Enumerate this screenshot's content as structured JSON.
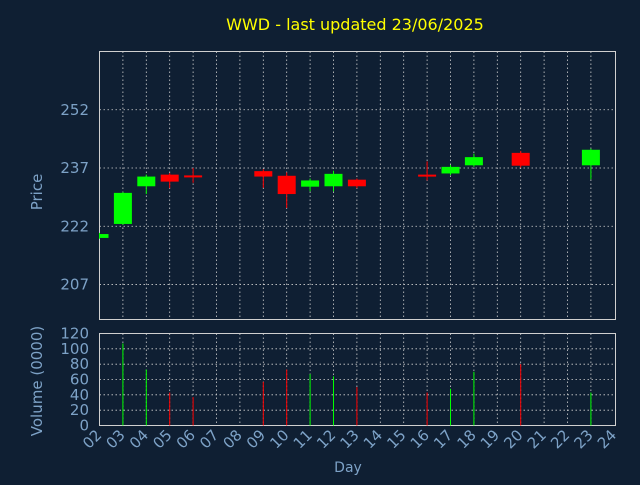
{
  "chart_data": {
    "type": "candlestick",
    "title": "WWD - last updated 23/06/2025",
    "xlabel": "Day",
    "price_panel": {
      "ylabel": "Price",
      "yticks": [
        207,
        222,
        237,
        252
      ],
      "ylim": [
        198,
        267
      ],
      "grid": true
    },
    "volume_panel": {
      "ylabel": "Volume (0000)",
      "yticks": [
        0,
        20,
        40,
        60,
        80,
        100,
        120
      ],
      "ylim": [
        0,
        120
      ],
      "grid": true
    },
    "x_ticks": [
      "02",
      "03",
      "04",
      "05",
      "06",
      "07",
      "08",
      "09",
      "10",
      "11",
      "12",
      "13",
      "14",
      "15",
      "16",
      "17",
      "18",
      "19",
      "20",
      "21",
      "22",
      "23",
      "24"
    ],
    "candles": [
      {
        "day": "02",
        "open": 219.0,
        "close": 220.0,
        "high": 220.3,
        "low": 218.8,
        "volume": 0
      },
      {
        "day": "03",
        "open": 222.6,
        "close": 230.6,
        "high": 230.8,
        "low": 222.4,
        "volume": 107
      },
      {
        "day": "04",
        "open": 232.3,
        "close": 234.8,
        "high": 235.3,
        "low": 230.3,
        "volume": 73
      },
      {
        "day": "05",
        "open": 235.3,
        "close": 233.5,
        "high": 235.7,
        "low": 231.8,
        "volume": 43
      },
      {
        "day": "06",
        "open": 235.1,
        "close": 234.9,
        "high": 237.0,
        "low": 233.2,
        "volume": 37
      },
      {
        "day": "09",
        "open": 236.2,
        "close": 234.8,
        "high": 236.7,
        "low": 231.9,
        "volume": 57
      },
      {
        "day": "10",
        "open": 235.0,
        "close": 230.3,
        "high": 235.9,
        "low": 226.7,
        "volume": 73
      },
      {
        "day": "11",
        "open": 232.2,
        "close": 233.8,
        "high": 234.3,
        "low": 231.0,
        "volume": 67
      },
      {
        "day": "12",
        "open": 232.3,
        "close": 235.5,
        "high": 236.3,
        "low": 231.0,
        "volume": 64
      },
      {
        "day": "13",
        "open": 234.0,
        "close": 232.3,
        "high": 234.3,
        "low": 231.8,
        "volume": 50
      },
      {
        "day": "16",
        "open": 235.3,
        "close": 235.0,
        "high": 238.7,
        "low": 233.8,
        "volume": 43
      },
      {
        "day": "17",
        "open": 235.6,
        "close": 237.3,
        "high": 237.8,
        "low": 235.2,
        "volume": 48
      },
      {
        "day": "18",
        "open": 237.7,
        "close": 239.8,
        "high": 240.7,
        "low": 237.3,
        "volume": 70
      },
      {
        "day": "20",
        "open": 240.9,
        "close": 237.6,
        "high": 241.4,
        "low": 237.1,
        "volume": 80
      },
      {
        "day": "23",
        "open": 237.7,
        "close": 241.7,
        "high": 242.0,
        "low": 234.1,
        "volume": 43
      }
    ],
    "colors": {
      "background": "#0f1f33",
      "plot_background": "#0f1f33",
      "text": "#7da2c7",
      "title": "#ffff00",
      "grid": "#d0d0d0",
      "up": "#00ff00",
      "down": "#ff0000"
    }
  }
}
